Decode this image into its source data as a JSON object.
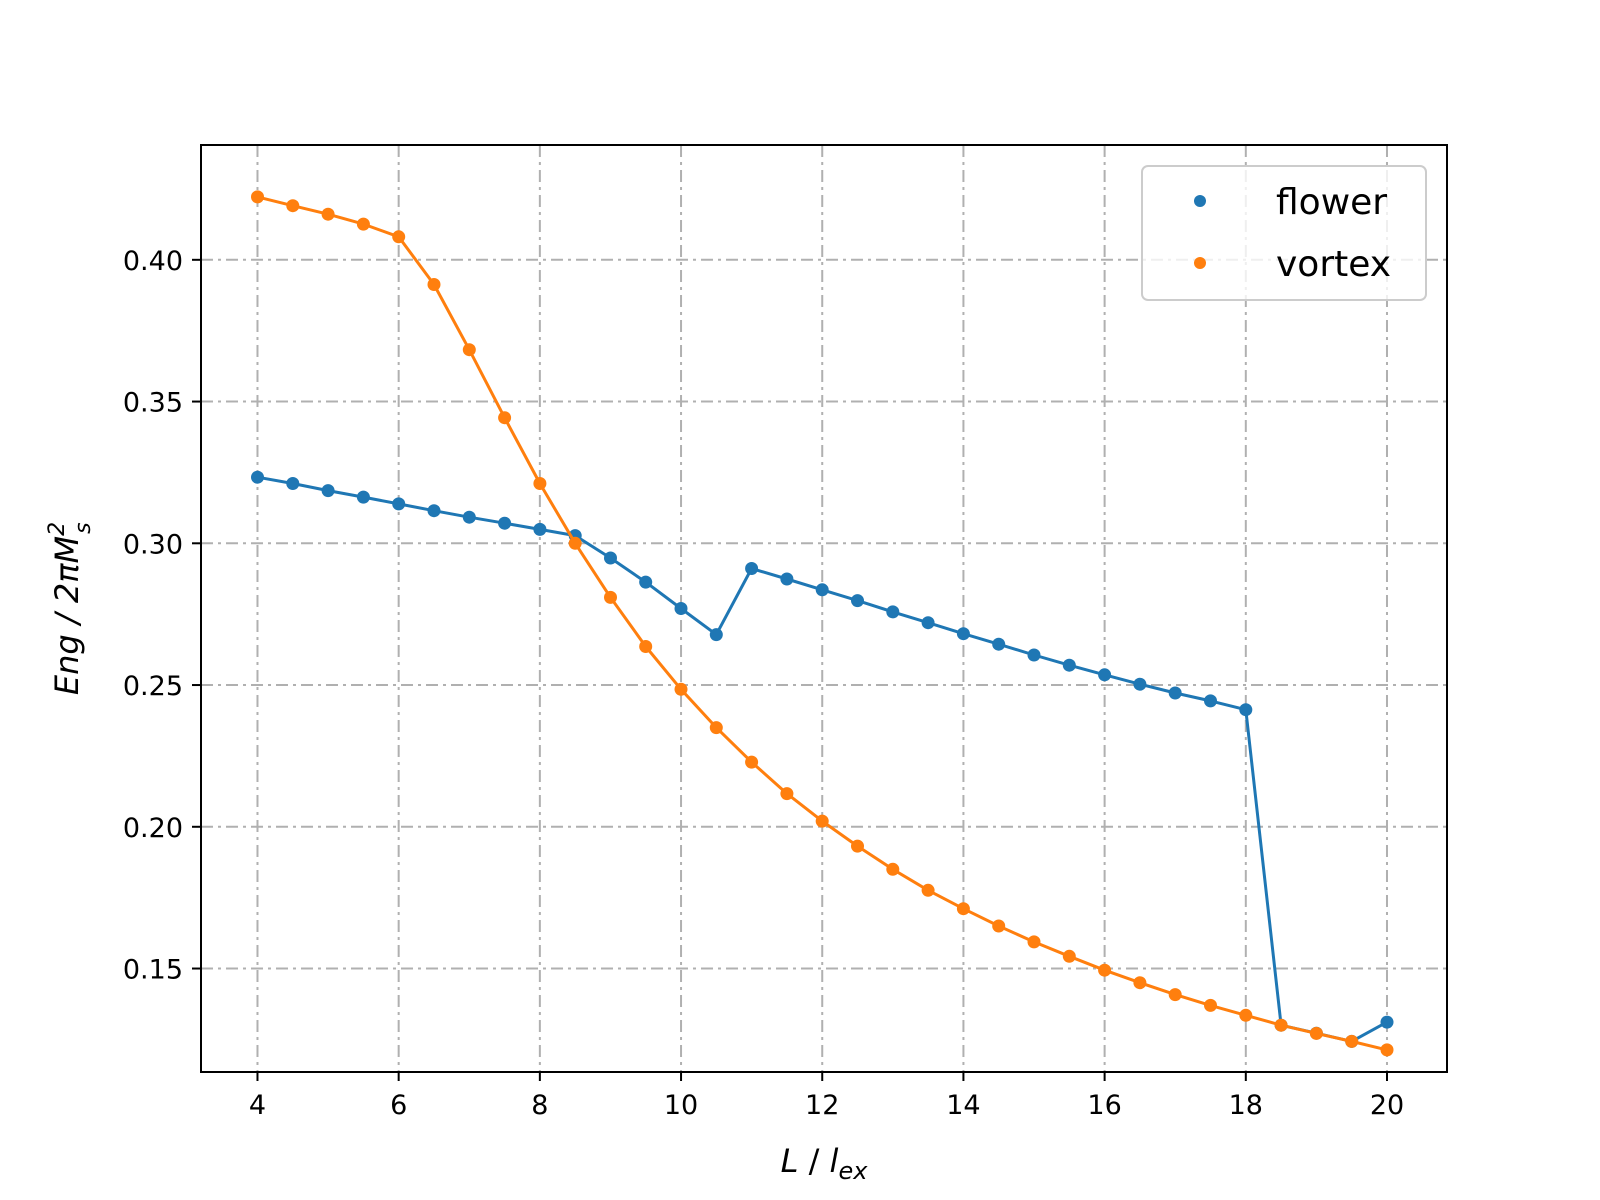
{
  "chart_data": {
    "type": "line",
    "xlabel": {
      "main": "L",
      "sep": " / ",
      "base": "l",
      "sub": "ex"
    },
    "ylabel": {
      "pre": "Eng / 2πM",
      "sup": "2",
      "sub": "s"
    },
    "xlim": [
      3.2,
      20.85
    ],
    "ylim": [
      0.1135,
      0.4405
    ],
    "xticks": [
      4,
      6,
      8,
      10,
      12,
      14,
      16,
      18,
      20
    ],
    "xtick_labels": [
      "4",
      "6",
      "8",
      "10",
      "12",
      "14",
      "16",
      "18",
      "20"
    ],
    "yticks": [
      0.15,
      0.2,
      0.25,
      0.3,
      0.35,
      0.4
    ],
    "ytick_labels": [
      "0.15",
      "0.20",
      "0.25",
      "0.30",
      "0.35",
      "0.40"
    ],
    "grid": true,
    "legend_position": "top-right",
    "series": [
      {
        "name": "flower",
        "color": "#1f77b4",
        "x": [
          4,
          4.5,
          5,
          5.5,
          6,
          6.5,
          7,
          7.5,
          8,
          8.5,
          9,
          9.5,
          10,
          10.5,
          11,
          11.5,
          12,
          12.5,
          13,
          13.5,
          14,
          14.5,
          15,
          15.5,
          16,
          16.5,
          17,
          17.5,
          18,
          18.5,
          19,
          19.5,
          20
        ],
        "y": [
          0.3233,
          0.3211,
          0.3186,
          0.3163,
          0.3139,
          0.3115,
          0.3092,
          0.3071,
          0.3049,
          0.3027,
          0.2948,
          0.2863,
          0.277,
          0.2678,
          0.2911,
          0.2874,
          0.2836,
          0.2798,
          0.2758,
          0.272,
          0.2681,
          0.2644,
          0.2606,
          0.257,
          0.2536,
          0.2503,
          0.2472,
          0.2444,
          0.2413,
          0.13,
          0.1272,
          0.1243,
          0.1311
        ]
      },
      {
        "name": "vortex",
        "color": "#ff7f0e",
        "x": [
          4,
          4.5,
          5,
          5.5,
          6,
          6.5,
          7,
          7.5,
          8,
          8.5,
          9,
          9.5,
          10,
          10.5,
          11,
          11.5,
          12,
          12.5,
          13,
          13.5,
          14,
          14.5,
          15,
          15.5,
          16,
          16.5,
          17,
          17.5,
          18,
          18.5,
          19,
          19.5,
          20
        ],
        "y": [
          0.4222,
          0.4191,
          0.4161,
          0.4126,
          0.4081,
          0.3913,
          0.3683,
          0.3443,
          0.3211,
          0.3,
          0.2809,
          0.2636,
          0.2485,
          0.235,
          0.2228,
          0.2117,
          0.202,
          0.1932,
          0.185,
          0.1776,
          0.1711,
          0.165,
          0.1594,
          0.1543,
          0.1494,
          0.145,
          0.1408,
          0.137,
          0.1335,
          0.13,
          0.1271,
          0.1243,
          0.1213
        ]
      }
    ]
  }
}
